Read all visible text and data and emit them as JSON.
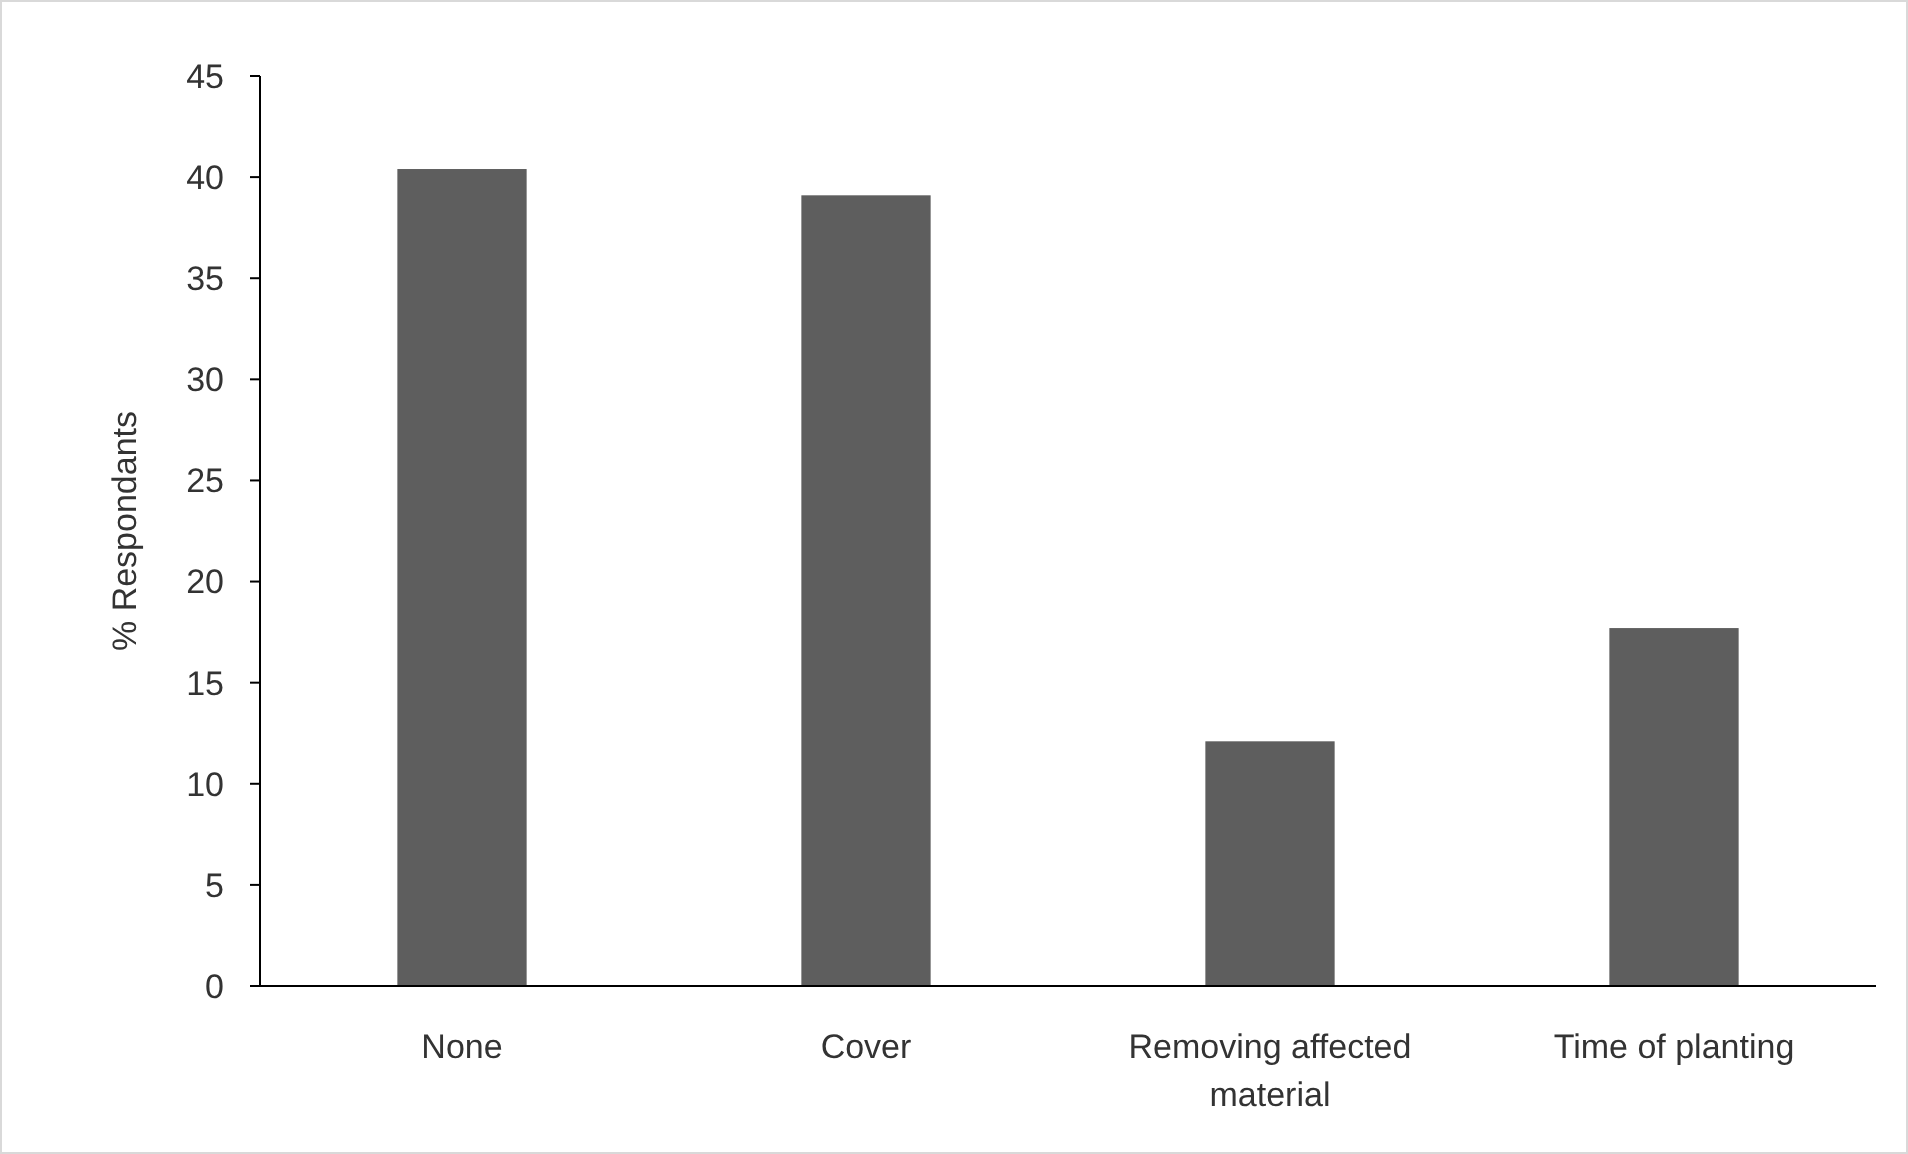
{
  "chart_data": {
    "type": "bar",
    "ylabel": "% Respondants",
    "categories": [
      "None",
      "Cover",
      "Removing affected material",
      "Time of planting"
    ],
    "values": [
      40.4,
      39.1,
      12.1,
      17.7
    ],
    "color": "#5e5e5e",
    "ylim": [
      0,
      45
    ],
    "yticks": [
      0,
      5,
      10,
      15,
      20,
      25,
      30,
      35,
      40,
      45
    ]
  }
}
